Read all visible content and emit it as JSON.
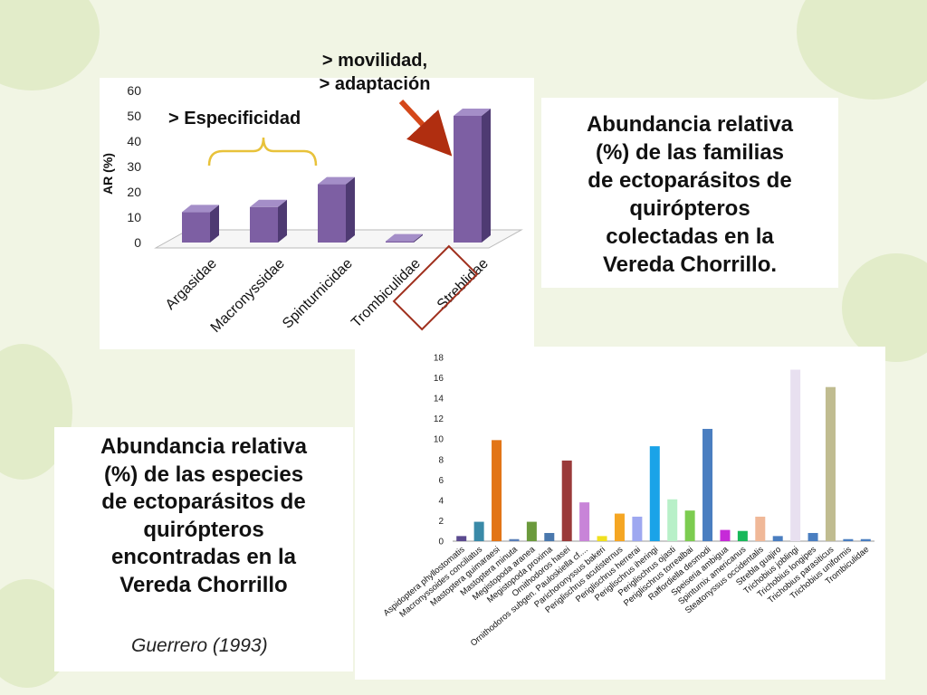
{
  "slide": {
    "caption_top": [
      "Abundancia relativa",
      "(%) de las familias",
      "de ectoparásitos de",
      "quirópteros",
      "colectadas en la",
      "Vereda Chorrillo."
    ],
    "caption_bottom": [
      "Abundancia relativa",
      "(%) de las especies",
      "de ectoparásitos de",
      "quirópteros",
      "encontradas en la",
      "Vereda Chorrillo"
    ],
    "citation": "Guerrero (1993)"
  },
  "chart_data": [
    {
      "type": "bar",
      "ylabel": "AR (%)",
      "ylim": [
        0,
        60
      ],
      "yticks": [
        "0",
        "10",
        "20",
        "30",
        "40",
        "50",
        "60"
      ],
      "categories": [
        "Argasidae",
        "Macronyssidae",
        "Spinturnicidae",
        "Trombiculidae",
        "Streblidae"
      ],
      "values": [
        12,
        14,
        23,
        0.5,
        50
      ],
      "bar_color": "#7d5fa3",
      "highlight_category": "Streblidae",
      "annotations": {
        "especificidad": "> Especificidad",
        "movilidad_1": "> movilidad,",
        "movilidad_2": "> adaptación"
      }
    },
    {
      "type": "bar",
      "ylim": [
        0,
        18
      ],
      "yticks": [
        "0",
        "2",
        "4",
        "6",
        "8",
        "10",
        "12",
        "14",
        "16",
        "18"
      ],
      "categories": [
        "Aspidoptera phyllostomatis",
        "Macronyssoides conciliatus",
        "Mastoptera guimaraesi",
        "Mastoptera minuta",
        "Megistopoda aranea",
        "Megistopoda proxima",
        "Ornithodoros hasei",
        "Ornithodoros subgen. Pauloskiella cf....",
        "Parichoronyssus bakeri",
        "Periglischrus acutisternus",
        "Periglischrus herrerai",
        "Periglischrus iheringi",
        "Periglischrus ojasti",
        "Periglischrus torrealbai",
        "Raffordiella desmodi",
        "Speiseria ambigua",
        "Spinturnix americanus",
        "Steatonyssus occidentalis",
        "Strebla guajiro",
        "Trichobius joblingi",
        "Trichobius longipes",
        "Trichobius parasiticus",
        "Trichobius uniformis",
        "Trombiculidae"
      ],
      "values": [
        0.5,
        1.9,
        9.9,
        0.2,
        1.9,
        0.8,
        7.9,
        3.8,
        0.5,
        2.7,
        2.4,
        9.3,
        4.1,
        3.0,
        11.0,
        1.1,
        1.0,
        2.4,
        0.5,
        16.8,
        0.8,
        15.1,
        0.2,
        0.2
      ],
      "colors": [
        "#5b4a8f",
        "#3a8aa8",
        "#e27517",
        "#5a7fb8",
        "#6b9a3c",
        "#4a78ad",
        "#9a3a3a",
        "#c884d8",
        "#f0e020",
        "#f5a623",
        "#9ea8f0",
        "#1aa3e8",
        "#b8f0c8",
        "#7ccc50",
        "#4a7ec0",
        "#c62ad8",
        "#18b85a",
        "#f0b898",
        "#4a7ec0",
        "#e8e0f0",
        "#4a7ec0",
        "#c0bc90",
        "#4a7ec0",
        "#4a7ec0"
      ]
    }
  ]
}
